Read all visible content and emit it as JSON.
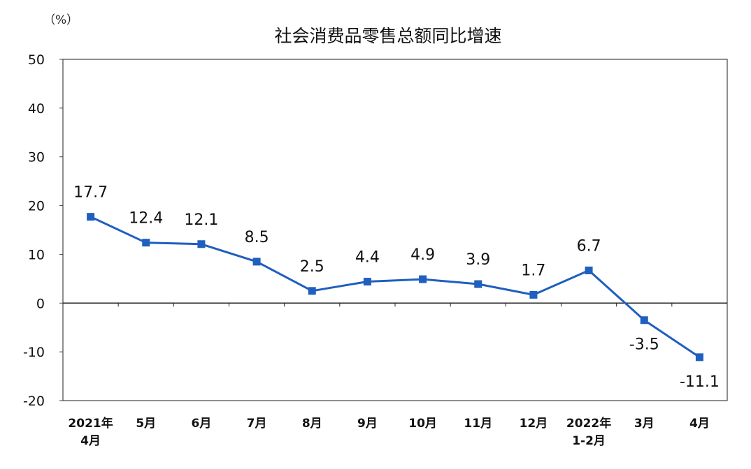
{
  "chart_data": {
    "type": "line",
    "title": "社会消费品零售总额同比增速",
    "unit_label": "（%）",
    "categories": [
      [
        "2021年",
        "4月"
      ],
      [
        "5月"
      ],
      [
        "6月"
      ],
      [
        "7月"
      ],
      [
        "8月"
      ],
      [
        "9月"
      ],
      [
        "10月"
      ],
      [
        "11月"
      ],
      [
        "12月"
      ],
      [
        "2022年",
        "1-2月"
      ],
      [
        "3月"
      ],
      [
        "4月"
      ]
    ],
    "values": [
      17.7,
      12.4,
      12.1,
      8.5,
      2.5,
      4.4,
      4.9,
      3.9,
      1.7,
      6.7,
      -3.5,
      -11.1
    ],
    "data_labels": [
      "17.7",
      "12.4",
      "12.1",
      "8.5",
      "2.5",
      "4.4",
      "4.9",
      "3.9",
      "1.7",
      "6.7",
      "-3.5",
      "-11.1"
    ],
    "ylim": [
      -20,
      50
    ],
    "yticks": [
      -20,
      -10,
      0,
      10,
      20,
      30,
      40,
      50
    ],
    "grid": false,
    "legend": "none",
    "series_color": "#1f5fbf"
  }
}
